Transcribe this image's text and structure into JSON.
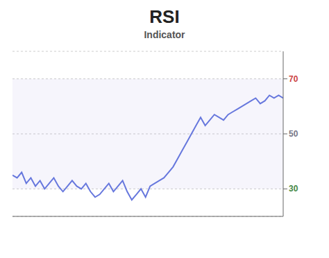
{
  "chart_data": {
    "type": "line",
    "title": "RSI",
    "subtitle": "Indicator",
    "x": [
      0,
      1,
      2,
      3,
      4,
      5,
      6,
      7,
      8,
      9,
      10,
      11,
      12,
      13,
      14,
      15,
      16,
      17,
      18,
      19,
      20,
      21,
      22,
      23,
      24,
      25,
      26,
      27,
      28,
      29,
      30,
      31,
      32,
      33,
      34,
      35,
      36,
      37,
      38,
      39,
      40,
      41,
      42,
      43,
      44,
      45,
      46,
      47,
      48,
      49,
      50,
      51,
      52,
      53,
      54,
      55,
      56,
      57,
      58,
      59
    ],
    "values": [
      35,
      34,
      36,
      32,
      34,
      31,
      33,
      30,
      32,
      34,
      31,
      29,
      31,
      33,
      31,
      30,
      32,
      29,
      27,
      28,
      30,
      32,
      29,
      31,
      33,
      29,
      26,
      28,
      30,
      27,
      31,
      32,
      33,
      34,
      36,
      38,
      41,
      44,
      47,
      50,
      53,
      56,
      53,
      55,
      57,
      56,
      55,
      57,
      58,
      59,
      60,
      61,
      62,
      63,
      61,
      62,
      64,
      63,
      64,
      63
    ],
    "color": "#6677dd",
    "xlim": [
      0,
      59
    ],
    "ylim": [
      20,
      80
    ],
    "yticks": [
      30,
      50,
      70
    ],
    "grid": true,
    "tick_labels": "y"
  }
}
